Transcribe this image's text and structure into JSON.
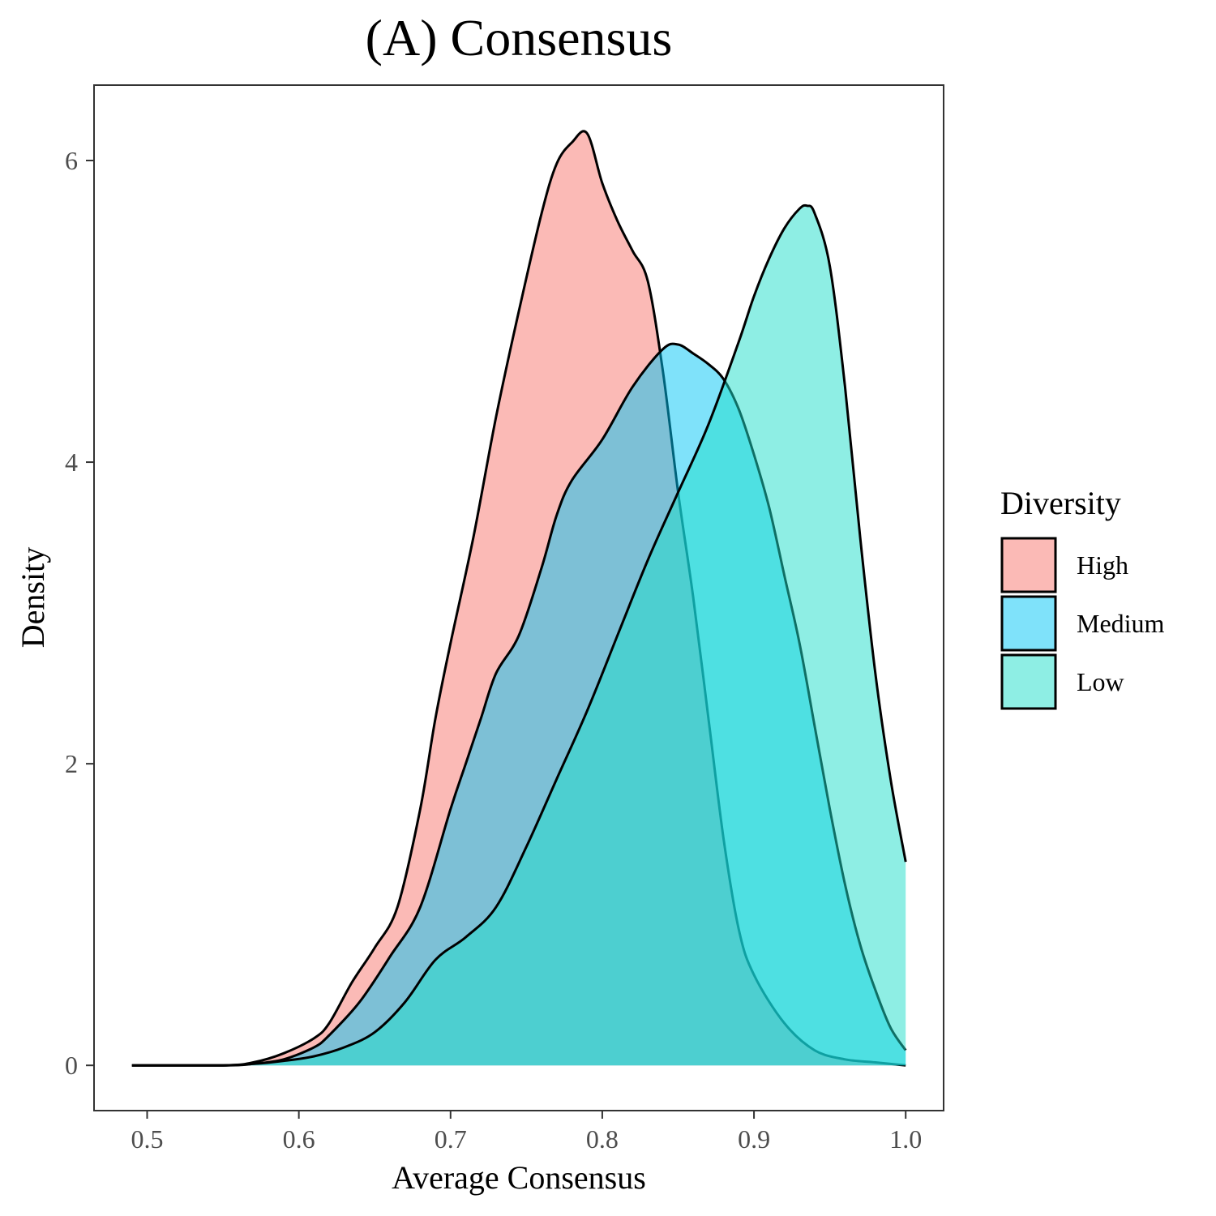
{
  "chart_data": {
    "type": "area",
    "title": "(A) Consensus",
    "xlabel": "Average Consensus",
    "ylabel": "Density",
    "xlim": [
      0.465,
      1.025
    ],
    "ylim": [
      -0.3,
      6.5
    ],
    "x_ticks": [
      0.5,
      0.6,
      0.7,
      0.8,
      0.9,
      1.0
    ],
    "x_tick_labels": [
      "0.5",
      "0.6",
      "0.7",
      "0.8",
      "0.9",
      "1.0"
    ],
    "y_ticks": [
      0,
      2,
      4,
      6
    ],
    "y_tick_labels": [
      "0",
      "2",
      "4",
      "6"
    ],
    "grid": false,
    "legend": {
      "title": "Diversity",
      "position": "right"
    },
    "series": [
      {
        "name": "High",
        "color": "#F8766D",
        "x": [
          0.49,
          0.55,
          0.57,
          0.59,
          0.61,
          0.62,
          0.635,
          0.65,
          0.665,
          0.68,
          0.69,
          0.7,
          0.715,
          0.73,
          0.745,
          0.76,
          0.77,
          0.78,
          0.79,
          0.8,
          0.81,
          0.82,
          0.83,
          0.84,
          0.85,
          0.86,
          0.87,
          0.88,
          0.89,
          0.9,
          0.92,
          0.94,
          0.96,
          0.98,
          1.0
        ],
        "y": [
          0.0,
          0.0,
          0.02,
          0.08,
          0.18,
          0.28,
          0.55,
          0.78,
          1.05,
          1.7,
          2.3,
          2.8,
          3.5,
          4.3,
          5.0,
          5.65,
          5.98,
          6.12,
          6.18,
          5.85,
          5.6,
          5.4,
          5.2,
          4.6,
          3.8,
          3.1,
          2.3,
          1.5,
          0.9,
          0.6,
          0.28,
          0.1,
          0.04,
          0.02,
          0.0
        ]
      },
      {
        "name": "Medium",
        "color": "#00C5F5",
        "x": [
          0.49,
          0.55,
          0.57,
          0.59,
          0.61,
          0.62,
          0.64,
          0.66,
          0.68,
          0.7,
          0.71,
          0.72,
          0.73,
          0.745,
          0.76,
          0.77,
          0.78,
          0.8,
          0.82,
          0.84,
          0.85,
          0.86,
          0.87,
          0.88,
          0.89,
          0.9,
          0.91,
          0.92,
          0.93,
          0.94,
          0.95,
          0.96,
          0.97,
          0.98,
          0.99,
          1.0
        ],
        "y": [
          0.0,
          0.0,
          0.01,
          0.04,
          0.12,
          0.2,
          0.42,
          0.72,
          1.05,
          1.7,
          2.0,
          2.3,
          2.6,
          2.85,
          3.3,
          3.65,
          3.88,
          4.15,
          4.5,
          4.75,
          4.78,
          4.72,
          4.65,
          4.55,
          4.35,
          4.05,
          3.7,
          3.25,
          2.8,
          2.25,
          1.7,
          1.2,
          0.8,
          0.5,
          0.25,
          0.1
        ]
      },
      {
        "name": "Low",
        "color": "#1DDDC9",
        "x": [
          0.49,
          0.55,
          0.57,
          0.59,
          0.61,
          0.63,
          0.65,
          0.67,
          0.69,
          0.71,
          0.73,
          0.75,
          0.77,
          0.79,
          0.81,
          0.83,
          0.85,
          0.87,
          0.89,
          0.9,
          0.91,
          0.92,
          0.93,
          0.935,
          0.94,
          0.95,
          0.96,
          0.97,
          0.98,
          0.99,
          1.0
        ],
        "y": [
          0.0,
          0.0,
          0.01,
          0.03,
          0.06,
          0.12,
          0.22,
          0.42,
          0.7,
          0.85,
          1.05,
          1.45,
          1.9,
          2.35,
          2.85,
          3.35,
          3.8,
          4.25,
          4.8,
          5.1,
          5.35,
          5.55,
          5.68,
          5.7,
          5.65,
          5.3,
          4.5,
          3.5,
          2.6,
          1.9,
          1.35
        ]
      }
    ]
  }
}
